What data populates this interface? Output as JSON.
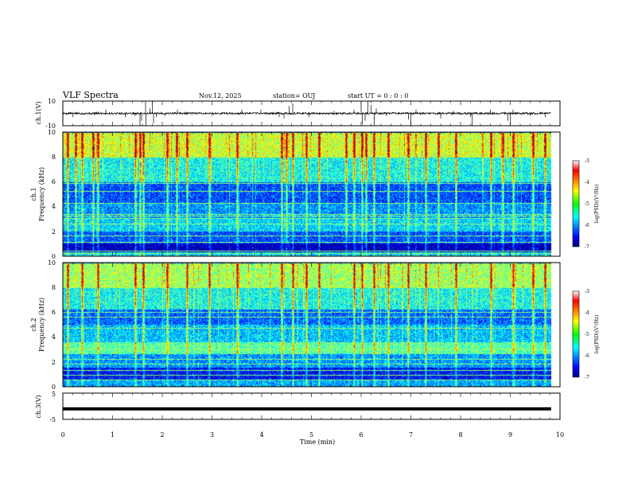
{
  "header": {
    "title": "VLF Spectra",
    "date": "Nov.12, 2025",
    "station": "station= OUJ",
    "start": "start UT =  0 : 0 : 0"
  },
  "chart_data": [
    {
      "type": "line",
      "name": "ch1-waveform",
      "ylabel": "ch.1(V)",
      "ylim": [
        -10,
        10
      ],
      "yticks": [
        "10",
        "-10"
      ],
      "baseline": 0,
      "spikes": [
        {
          "t": 0.2,
          "v": -3
        },
        {
          "t": 0.86,
          "v": 3
        },
        {
          "t": 1.25,
          "v": -3
        },
        {
          "t": 1.45,
          "v": -2
        },
        {
          "t": 1.55,
          "v": -10
        },
        {
          "t": 1.58,
          "v": -6
        },
        {
          "t": 1.66,
          "v": 10
        },
        {
          "t": 1.67,
          "v": -10
        },
        {
          "t": 1.75,
          "v": 4
        },
        {
          "t": 1.8,
          "v": 10
        },
        {
          "t": 1.82,
          "v": -8
        },
        {
          "t": 1.88,
          "v": -3
        },
        {
          "t": 2.05,
          "v": -2
        },
        {
          "t": 2.3,
          "v": 3
        },
        {
          "t": 3.0,
          "v": -2
        },
        {
          "t": 3.6,
          "v": 3
        },
        {
          "t": 3.98,
          "v": 3
        },
        {
          "t": 4.35,
          "v": -3
        },
        {
          "t": 4.44,
          "v": -4
        },
        {
          "t": 4.55,
          "v": 6
        },
        {
          "t": 4.62,
          "v": 8
        },
        {
          "t": 4.95,
          "v": -3
        },
        {
          "t": 5.45,
          "v": 2
        },
        {
          "t": 5.85,
          "v": 3
        },
        {
          "t": 6.0,
          "v": 10
        },
        {
          "t": 6.02,
          "v": -9
        },
        {
          "t": 6.08,
          "v": -6
        },
        {
          "t": 6.13,
          "v": 10
        },
        {
          "t": 6.2,
          "v": 7
        },
        {
          "t": 6.26,
          "v": -10
        },
        {
          "t": 6.3,
          "v": 4
        },
        {
          "t": 6.5,
          "v": -2
        },
        {
          "t": 6.95,
          "v": -5
        },
        {
          "t": 7.0,
          "v": -10
        },
        {
          "t": 7.1,
          "v": 3
        },
        {
          "t": 7.6,
          "v": -4
        },
        {
          "t": 7.85,
          "v": 2
        },
        {
          "t": 8.2,
          "v": -3
        },
        {
          "t": 8.23,
          "v": -10
        },
        {
          "t": 8.6,
          "v": 3
        },
        {
          "t": 8.95,
          "v": -6
        },
        {
          "t": 9.0,
          "v": -10
        },
        {
          "t": 9.05,
          "v": 3
        },
        {
          "t": 9.4,
          "v": -2
        },
        {
          "t": 9.7,
          "v": -3
        }
      ]
    },
    {
      "type": "heatmap",
      "name": "ch1-spectrogram",
      "ylabel_top": "ch.1",
      "ylabel": "Frequency (kHz)",
      "ylim": [
        0,
        10
      ],
      "yticks": [
        "0",
        "2",
        "4",
        "6",
        "8",
        "10"
      ],
      "colorbar_label": "log(PSD)(V²/Hz)",
      "colorbar_ticks": [
        "-3",
        "-4",
        "-5",
        "-6",
        "-7"
      ],
      "colorbar_range": [
        -7,
        -3
      ],
      "noise_seed": 11,
      "bands": [
        {
          "lo": 0.0,
          "hi": 0.3,
          "level": -5.7
        },
        {
          "lo": 0.3,
          "hi": 1.0,
          "level": -6.9
        },
        {
          "lo": 1.0,
          "hi": 2.0,
          "level": -6.3
        },
        {
          "lo": 2.0,
          "hi": 3.0,
          "level": -5.7
        },
        {
          "lo": 3.0,
          "hi": 4.2,
          "level": -6.0
        },
        {
          "lo": 4.2,
          "hi": 6.0,
          "level": -6.3
        },
        {
          "lo": 6.0,
          "hi": 8.0,
          "level": -5.5
        },
        {
          "lo": 8.0,
          "hi": 10.0,
          "level": -4.7
        }
      ],
      "lines_khz": [
        0.2,
        0.4,
        1.1,
        1.6,
        2.55,
        3.05,
        3.2,
        3.35,
        4.25,
        5.2,
        5.85
      ],
      "strong_sferics_min": [
        0.1,
        0.25,
        0.38,
        0.6,
        0.7,
        1.45,
        1.55,
        1.62,
        2.1,
        2.28,
        2.5,
        2.95,
        3.5,
        4.4,
        4.5,
        4.62,
        4.9,
        5.15,
        5.7,
        5.85,
        6.02,
        6.1,
        6.25,
        6.55,
        6.95,
        7.3,
        7.55,
        7.9,
        8.6,
        8.85,
        9.05,
        9.45,
        9.7
      ]
    },
    {
      "type": "heatmap",
      "name": "ch2-spectrogram",
      "ylabel_top": "ch.2",
      "ylabel": "Frequency (kHz)",
      "ylim": [
        0,
        10
      ],
      "yticks": [
        "0",
        "2",
        "4",
        "6",
        "8",
        "10"
      ],
      "colorbar_label": "log(PSD)(V²/Hz)",
      "colorbar_ticks": [
        "-3",
        "-4",
        "-5",
        "-6",
        "-7"
      ],
      "colorbar_range": [
        -7,
        -3
      ],
      "noise_seed": 29,
      "bands": [
        {
          "lo": 0.0,
          "hi": 0.5,
          "level": -5.9
        },
        {
          "lo": 0.5,
          "hi": 1.5,
          "level": -6.6
        },
        {
          "lo": 1.5,
          "hi": 2.6,
          "level": -6.0
        },
        {
          "lo": 2.6,
          "hi": 3.6,
          "level": -5.2
        },
        {
          "lo": 3.6,
          "hi": 5.0,
          "level": -5.8
        },
        {
          "lo": 5.0,
          "hi": 6.2,
          "level": -6.2
        },
        {
          "lo": 6.2,
          "hi": 8.0,
          "level": -5.5
        },
        {
          "lo": 8.0,
          "hi": 10.0,
          "level": -4.9
        }
      ],
      "lines_khz": [
        0.5,
        0.9,
        1.3,
        1.8,
        2.2,
        3.0,
        4.7,
        5.6,
        6.0
      ],
      "strong_sferics_min": [
        0.1,
        0.38,
        0.7,
        1.45,
        1.62,
        2.1,
        2.5,
        2.95,
        3.5,
        4.4,
        4.62,
        4.9,
        5.15,
        5.85,
        6.02,
        6.25,
        6.55,
        6.95,
        7.3,
        7.9,
        8.6,
        9.05,
        9.45,
        9.7
      ]
    },
    {
      "type": "line",
      "name": "ch3-waveform",
      "ylabel": "ch.3(V)",
      "ylim": [
        -5,
        5
      ],
      "yticks": [
        "5",
        "-5"
      ],
      "baseline": -1
    }
  ],
  "time_axis": {
    "label": "Time (min)",
    "xlim": [
      0,
      10
    ],
    "ticks": [
      "0",
      "1",
      "2",
      "3",
      "4",
      "5",
      "6",
      "7",
      "8",
      "9",
      "10"
    ],
    "data_end": 9.82
  }
}
